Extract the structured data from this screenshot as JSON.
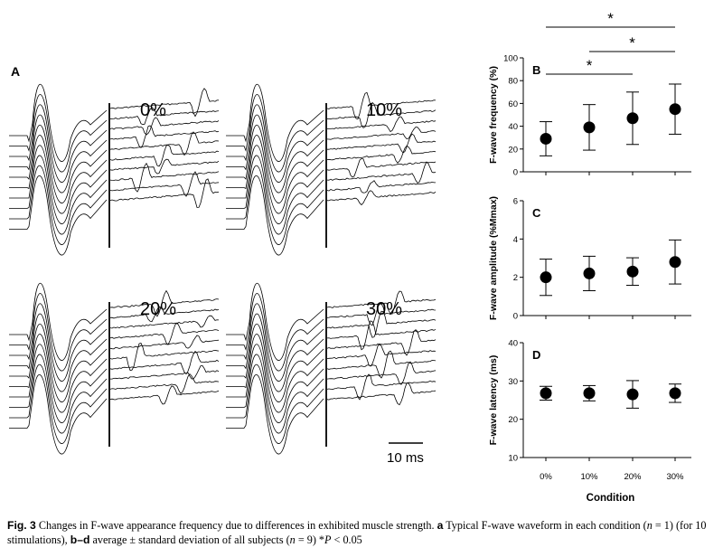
{
  "panel_a": {
    "label": "A",
    "conditions": [
      "0%",
      "10%",
      "20%",
      "30%"
    ],
    "scale_bar_label": "10 ms"
  },
  "chart_data": [
    {
      "type": "scatter",
      "panel": "B",
      "ylabel": "F-wave frequency (%)",
      "categories": [
        "0%",
        "10%",
        "20%",
        "30%"
      ],
      "values": [
        29,
        39,
        47,
        55
      ],
      "error": [
        15,
        20,
        23,
        22
      ],
      "ylim": [
        0,
        100
      ],
      "yticks": [
        "0",
        "20",
        "40",
        "60",
        "80",
        "100"
      ],
      "significance": [
        {
          "from": "0%",
          "to": "20%",
          "label": "*"
        },
        {
          "from": "10%",
          "to": "30%",
          "label": "*"
        },
        {
          "from": "0%",
          "to": "30%",
          "label": "*"
        }
      ]
    },
    {
      "type": "scatter",
      "panel": "C",
      "ylabel": "F-wave amplitude (%Mmax)",
      "categories": [
        "0%",
        "10%",
        "20%",
        "30%"
      ],
      "values": [
        2.0,
        2.2,
        2.3,
        2.8
      ],
      "error": [
        0.95,
        0.9,
        0.72,
        1.15
      ],
      "ylim": [
        0,
        6
      ],
      "yticks": [
        "0",
        "2",
        "4",
        "6"
      ]
    },
    {
      "type": "scatter",
      "panel": "D",
      "ylabel": "F-wave latency (ms)",
      "xlabel": "Condition",
      "categories": [
        "0%",
        "10%",
        "20%",
        "30%"
      ],
      "values": [
        26.8,
        26.8,
        26.5,
        26.8
      ],
      "error": [
        1.8,
        2.0,
        3.6,
        2.4
      ],
      "ylim": [
        10,
        40
      ],
      "yticks": [
        "10",
        "20",
        "30",
        "40"
      ]
    }
  ],
  "caption": {
    "fig_label": "Fig. 3",
    "text1": "  Changes in F-wave appearance frequency due to differences in exhibited muscle strength. ",
    "a_label": "a",
    "text2": " Typical F-wave waveform in each condition (",
    "n1": "n",
    "text3": " = 1) (for 10 stimulations), ",
    "bd_label": "b–d",
    "text4": " average ± standard deviation of all subjects (",
    "n2": "n",
    "text5": " = 9) *",
    "p": "P",
    "text6": " < 0.05"
  }
}
